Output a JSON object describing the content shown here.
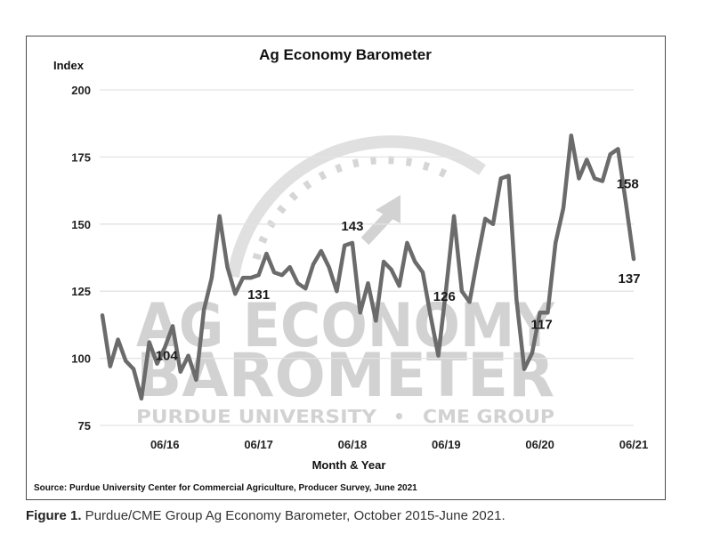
{
  "watermark": {
    "line1": "AG ECONOMY",
    "line2": "BAROMETER",
    "line3_left": "PURDUE UNIVERSITY",
    "line3_sep": "•",
    "line3_right": "CME GROUP"
  },
  "source": "Source: Purdue University Center for Commercial Agriculture, Producer Survey, June 2021",
  "caption": {
    "bold": "Figure 1.",
    "text": " Purdue/CME Group Ag Economy Barometer, October 2015-June 2021."
  },
  "colors": {
    "line": "#6b6b6b",
    "grid": "#e3e3e3",
    "watermark": "#d2d2d2"
  },
  "chart_data": {
    "type": "line",
    "title": "Ag Economy Barometer",
    "ylabel": "Index",
    "xlabel": "Month & Year",
    "ylim": [
      75,
      200
    ],
    "yticks": [
      75,
      100,
      125,
      150,
      175,
      200
    ],
    "x_start": "2015-10",
    "x_end": "2021-06",
    "xticks": [
      {
        "date": "2016-06",
        "label": "06/16"
      },
      {
        "date": "2017-06",
        "label": "06/17"
      },
      {
        "date": "2018-06",
        "label": "06/18"
      },
      {
        "date": "2019-06",
        "label": "06/19"
      },
      {
        "date": "2020-06",
        "label": "06/20"
      },
      {
        "date": "2021-06",
        "label": "06/21"
      }
    ],
    "grid": true,
    "series": [
      {
        "values": [
          {
            "x": "2015-10",
            "y": 116
          },
          {
            "x": "2015-11",
            "y": 97
          },
          {
            "x": "2015-12",
            "y": 107
          },
          {
            "x": "2016-01",
            "y": 99
          },
          {
            "x": "2016-02",
            "y": 96
          },
          {
            "x": "2016-03",
            "y": 85
          },
          {
            "x": "2016-04",
            "y": 106
          },
          {
            "x": "2016-05",
            "y": 98
          },
          {
            "x": "2016-06",
            "y": 104
          },
          {
            "x": "2016-07",
            "y": 112
          },
          {
            "x": "2016-08",
            "y": 95
          },
          {
            "x": "2016-09",
            "y": 101
          },
          {
            "x": "2016-10",
            "y": 92
          },
          {
            "x": "2016-11",
            "y": 118
          },
          {
            "x": "2016-12",
            "y": 130
          },
          {
            "x": "2017-01",
            "y": 153
          },
          {
            "x": "2017-02",
            "y": 134
          },
          {
            "x": "2017-03",
            "y": 124
          },
          {
            "x": "2017-04",
            "y": 130
          },
          {
            "x": "2017-05",
            "y": 130
          },
          {
            "x": "2017-06",
            "y": 131
          },
          {
            "x": "2017-07",
            "y": 139
          },
          {
            "x": "2017-08",
            "y": 132
          },
          {
            "x": "2017-09",
            "y": 131
          },
          {
            "x": "2017-10",
            "y": 134
          },
          {
            "x": "2017-11",
            "y": 128
          },
          {
            "x": "2017-12",
            "y": 126
          },
          {
            "x": "2018-01",
            "y": 135
          },
          {
            "x": "2018-02",
            "y": 140
          },
          {
            "x": "2018-03",
            "y": 134
          },
          {
            "x": "2018-04",
            "y": 125
          },
          {
            "x": "2018-05",
            "y": 142
          },
          {
            "x": "2018-06",
            "y": 143
          },
          {
            "x": "2018-07",
            "y": 117
          },
          {
            "x": "2018-08",
            "y": 128
          },
          {
            "x": "2018-09",
            "y": 114
          },
          {
            "x": "2018-10",
            "y": 136
          },
          {
            "x": "2018-11",
            "y": 133
          },
          {
            "x": "2018-12",
            "y": 127
          },
          {
            "x": "2019-01",
            "y": 143
          },
          {
            "x": "2019-02",
            "y": 136
          },
          {
            "x": "2019-03",
            "y": 132
          },
          {
            "x": "2019-04",
            "y": 116
          },
          {
            "x": "2019-05",
            "y": 101
          },
          {
            "x": "2019-06",
            "y": 126
          },
          {
            "x": "2019-07",
            "y": 153
          },
          {
            "x": "2019-08",
            "y": 125
          },
          {
            "x": "2019-09",
            "y": 121
          },
          {
            "x": "2019-10",
            "y": 137
          },
          {
            "x": "2019-11",
            "y": 152
          },
          {
            "x": "2019-12",
            "y": 150
          },
          {
            "x": "2020-01",
            "y": 167
          },
          {
            "x": "2020-02",
            "y": 168
          },
          {
            "x": "2020-03",
            "y": 122
          },
          {
            "x": "2020-04",
            "y": 96
          },
          {
            "x": "2020-05",
            "y": 102
          },
          {
            "x": "2020-06",
            "y": 117
          },
          {
            "x": "2020-07",
            "y": 117
          },
          {
            "x": "2020-08",
            "y": 143
          },
          {
            "x": "2020-09",
            "y": 156
          },
          {
            "x": "2020-10",
            "y": 183
          },
          {
            "x": "2020-11",
            "y": 167
          },
          {
            "x": "2020-12",
            "y": 174
          },
          {
            "x": "2021-01",
            "y": 167
          },
          {
            "x": "2021-02",
            "y": 166
          },
          {
            "x": "2021-03",
            "y": 176
          },
          {
            "x": "2021-04",
            "y": 178
          },
          {
            "x": "2021-05",
            "y": 158
          },
          {
            "x": "2021-06",
            "y": 137
          }
        ]
      }
    ],
    "annotations": [
      {
        "x": "2016-06",
        "y": 104,
        "text": "104"
      },
      {
        "x": "2017-06",
        "y": 131,
        "text": "131"
      },
      {
        "x": "2018-06",
        "y": 143,
        "text": "143"
      },
      {
        "x": "2019-06",
        "y": 126,
        "text": "126"
      },
      {
        "x": "2020-06",
        "y": 117,
        "text": "117"
      },
      {
        "x": "2021-05",
        "y": 158,
        "text": "158"
      },
      {
        "x": "2021-06",
        "y": 137,
        "text": "137"
      }
    ]
  }
}
